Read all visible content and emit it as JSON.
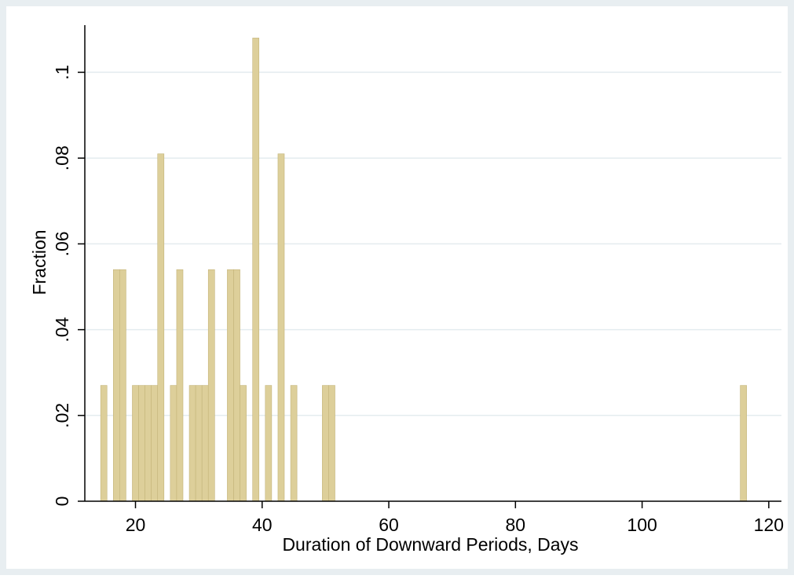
{
  "chart_data": {
    "type": "bar",
    "xlabel": "Duration of Downward Periods, Days",
    "ylabel": "Fraction",
    "xlim": [
      12,
      122
    ],
    "ylim": [
      0,
      0.111
    ],
    "x_ticks": [
      20,
      40,
      60,
      80,
      100,
      120
    ],
    "x_tick_labels": [
      "20",
      "40",
      "60",
      "80",
      "100",
      "120"
    ],
    "y_ticks": [
      0,
      0.02,
      0.04,
      0.06,
      0.08,
      0.1
    ],
    "y_tick_labels": [
      "0",
      ".02",
      ".04",
      ".06",
      ".08",
      ".1"
    ],
    "grid": true,
    "bin_width": 1,
    "bars": [
      {
        "x": 15,
        "value": 0.027
      },
      {
        "x": 17,
        "value": 0.054
      },
      {
        "x": 18,
        "value": 0.054
      },
      {
        "x": 20,
        "value": 0.027
      },
      {
        "x": 21,
        "value": 0.027
      },
      {
        "x": 22,
        "value": 0.027
      },
      {
        "x": 23,
        "value": 0.027
      },
      {
        "x": 24,
        "value": 0.081
      },
      {
        "x": 26,
        "value": 0.027
      },
      {
        "x": 27,
        "value": 0.054
      },
      {
        "x": 29,
        "value": 0.027
      },
      {
        "x": 30,
        "value": 0.027
      },
      {
        "x": 31,
        "value": 0.027
      },
      {
        "x": 32,
        "value": 0.054
      },
      {
        "x": 35,
        "value": 0.054
      },
      {
        "x": 36,
        "value": 0.054
      },
      {
        "x": 37,
        "value": 0.027
      },
      {
        "x": 39,
        "value": 0.108
      },
      {
        "x": 41,
        "value": 0.027
      },
      {
        "x": 43,
        "value": 0.081
      },
      {
        "x": 45,
        "value": 0.027
      },
      {
        "x": 50,
        "value": 0.027
      },
      {
        "x": 51,
        "value": 0.027
      },
      {
        "x": 116,
        "value": 0.027
      }
    ],
    "colors": {
      "outer_background": "#e8eef1",
      "plot_background": "#ffffff",
      "bar_fill": "#ddcf9a",
      "bar_edge": "#c4b47a",
      "grid": "#e4ecef",
      "axis": "#000000"
    }
  }
}
